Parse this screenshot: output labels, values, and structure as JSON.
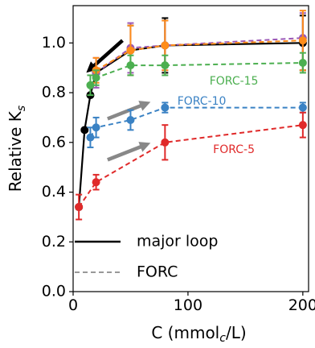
{
  "chart_data": {
    "type": "line",
    "xlabel": "C (mmol",
    "xlabel_sub": "c",
    "xlabel_tail": "/L)",
    "ylabel": "Relative K",
    "ylabel_sub": "s",
    "xlim": [
      0,
      205
    ],
    "ylim": [
      0.0,
      1.15
    ],
    "xticks": [
      0,
      100,
      200
    ],
    "yticks": [
      0.0,
      0.2,
      0.4,
      0.6,
      0.8,
      1.0
    ],
    "ytick_labels": [
      "0.0",
      "0.2",
      "0.4",
      "0.6",
      "0.8",
      "1.0"
    ],
    "legend": {
      "placement": "bottom-left",
      "items": [
        {
          "label": "major loop",
          "style": "solid",
          "color": "#000000"
        },
        {
          "label": "FORC",
          "style": "dashed",
          "color": "#999999"
        }
      ]
    },
    "series": [
      {
        "label": "major loop",
        "color": "#000000",
        "style": "solid",
        "x": [
          5,
          10,
          15,
          20,
          50,
          80,
          200
        ],
        "y": [
          0.34,
          0.65,
          0.79,
          0.88,
          0.97,
          0.99,
          1.0
        ],
        "err": [
          0.0,
          0.0,
          0.0,
          0.0,
          0.1,
          0.11,
          0.11
        ]
      },
      {
        "label": "purple",
        "color": "#9b59b6",
        "style": "dashed",
        "x": [
          20,
          50,
          80,
          200
        ],
        "y": [
          0.88,
          0.98,
          0.99,
          1.02
        ],
        "err": [
          0.06,
          0.1,
          0.1,
          0.1
        ]
      },
      {
        "label": "orange",
        "color": "#ff8c1a",
        "style": "dashed",
        "x": [
          20,
          50,
          80,
          200
        ],
        "y": [
          0.89,
          0.97,
          0.99,
          1.01
        ],
        "err": [
          0.05,
          0.1,
          0.1,
          0.12
        ]
      },
      {
        "label": "FORC-15",
        "color": "#4caf50",
        "style": "dashed",
        "x": [
          15,
          20,
          50,
          80,
          200
        ],
        "y": [
          0.83,
          0.86,
          0.91,
          0.91,
          0.92
        ],
        "err": [
          0.04,
          0.03,
          0.04,
          0.04,
          0.04
        ]
      },
      {
        "label": "FORC-10",
        "color": "#3a82c4",
        "style": "dashed",
        "x": [
          15,
          20,
          50,
          80,
          200
        ],
        "y": [
          0.62,
          0.66,
          0.69,
          0.74,
          0.74
        ],
        "err": [
          0.04,
          0.04,
          0.04,
          0.02,
          0.02
        ]
      },
      {
        "label": "FORC-5",
        "color": "#e02a2a",
        "style": "dashed",
        "x": [
          5,
          20,
          80,
          200
        ],
        "y": [
          0.34,
          0.44,
          0.6,
          0.67
        ],
        "err": [
          0.05,
          0.03,
          0.07,
          0.05
        ]
      }
    ],
    "annotations": [
      {
        "text": "FORC-15",
        "color": "#4caf50",
        "x": 140,
        "y": 0.845
      },
      {
        "text": "FORC-10",
        "color": "#3a82c4",
        "x": 112,
        "y": 0.765
      },
      {
        "text": "FORC-5",
        "color": "#e02a2a",
        "x": 140,
        "y": 0.57
      }
    ],
    "arrows": [
      {
        "from": [
          43,
          1.01
        ],
        "to": [
          15,
          0.895
        ],
        "color": "#000000"
      },
      {
        "from": [
          30,
          0.695
        ],
        "to": [
          63,
          0.755
        ],
        "color": "#888888"
      },
      {
        "from": [
          30,
          0.53
        ],
        "to": [
          63,
          0.59
        ],
        "color": "#888888"
      }
    ]
  }
}
